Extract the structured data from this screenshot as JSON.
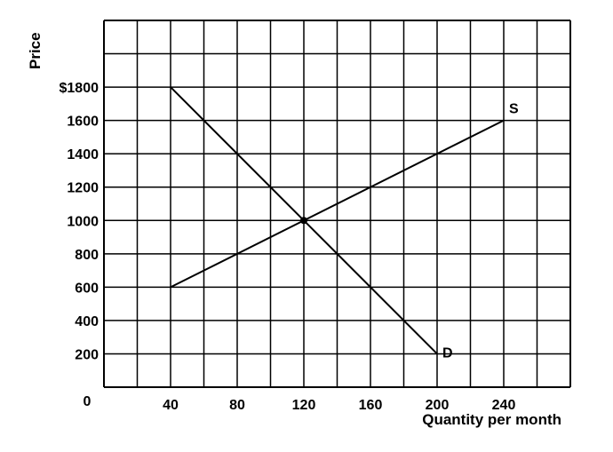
{
  "chart_data": {
    "type": "line",
    "xlabel": "Quantity per month",
    "ylabel": "Price",
    "xlim": [
      0,
      280
    ],
    "ylim": [
      0,
      2200
    ],
    "x_gridlines": [
      0,
      20,
      40,
      60,
      80,
      100,
      120,
      140,
      160,
      180,
      200,
      220,
      240,
      260,
      280
    ],
    "y_gridlines": [
      0,
      200,
      400,
      600,
      800,
      1000,
      1200,
      1400,
      1600,
      1800,
      2000,
      2200
    ],
    "grid": true,
    "x_ticks": [
      {
        "value": 0,
        "label": "0"
      },
      {
        "value": 40,
        "label": "40"
      },
      {
        "value": 80,
        "label": "80"
      },
      {
        "value": 120,
        "label": "120"
      },
      {
        "value": 160,
        "label": "160"
      },
      {
        "value": 200,
        "label": "200"
      },
      {
        "value": 240,
        "label": "240"
      }
    ],
    "y_ticks": [
      {
        "value": 200,
        "label": "200"
      },
      {
        "value": 400,
        "label": "400"
      },
      {
        "value": 600,
        "label": "600"
      },
      {
        "value": 800,
        "label": "800"
      },
      {
        "value": 1000,
        "label": "1000"
      },
      {
        "value": 1200,
        "label": "1200"
      },
      {
        "value": 1400,
        "label": "1400"
      },
      {
        "value": 1600,
        "label": "1600"
      },
      {
        "value": 1800,
        "label": "$1800"
      }
    ],
    "series": [
      {
        "name": "S",
        "x": [
          40,
          240
        ],
        "y": [
          600,
          1600
        ]
      },
      {
        "name": "D",
        "x": [
          40,
          200
        ],
        "y": [
          1800,
          200
        ]
      }
    ],
    "equilibrium": {
      "x": 120,
      "y": 1000
    },
    "colors": {
      "line": "#000000",
      "grid": "#000000",
      "background": "#ffffff"
    }
  }
}
